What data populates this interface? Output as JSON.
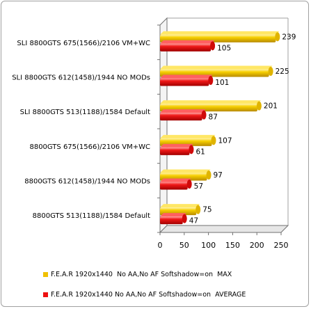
{
  "chart_data": {
    "type": "bar",
    "orientation": "horizontal",
    "style": "3d-cylinder",
    "categories": [
      "SLI 8800GTS 675(1566)/2106 VM+WC",
      "SLI 8800GTS 612(1458)/1944 NO MODs",
      "SLI 8800GTS 513(1188)/1584 Default",
      "8800GTS 675(1566)/2106 VM+WC",
      "8800GTS 612(1458)/1944 NO MODs",
      "8800GTS 513(1188)/1584 Default"
    ],
    "series": [
      {
        "name": "F.E.A.R 1920x1440  No AA,No AF Softshadow=on  MAX",
        "color": "#f0c000",
        "values": [
          239,
          225,
          201,
          107,
          97,
          75
        ]
      },
      {
        "name": "F.E.A.R 1920x1440 No AA,No AF Softshadow=on  AVERAGE",
        "color": "#ee1010",
        "values": [
          105,
          101,
          87,
          61,
          57,
          47
        ]
      }
    ],
    "xlim": [
      0,
      250
    ],
    "xticks": [
      "0",
      "50",
      "100",
      "150",
      "200",
      "250"
    ],
    "grid": false,
    "legend_position": "bottom",
    "title": "",
    "xlabel": "",
    "ylabel": ""
  }
}
